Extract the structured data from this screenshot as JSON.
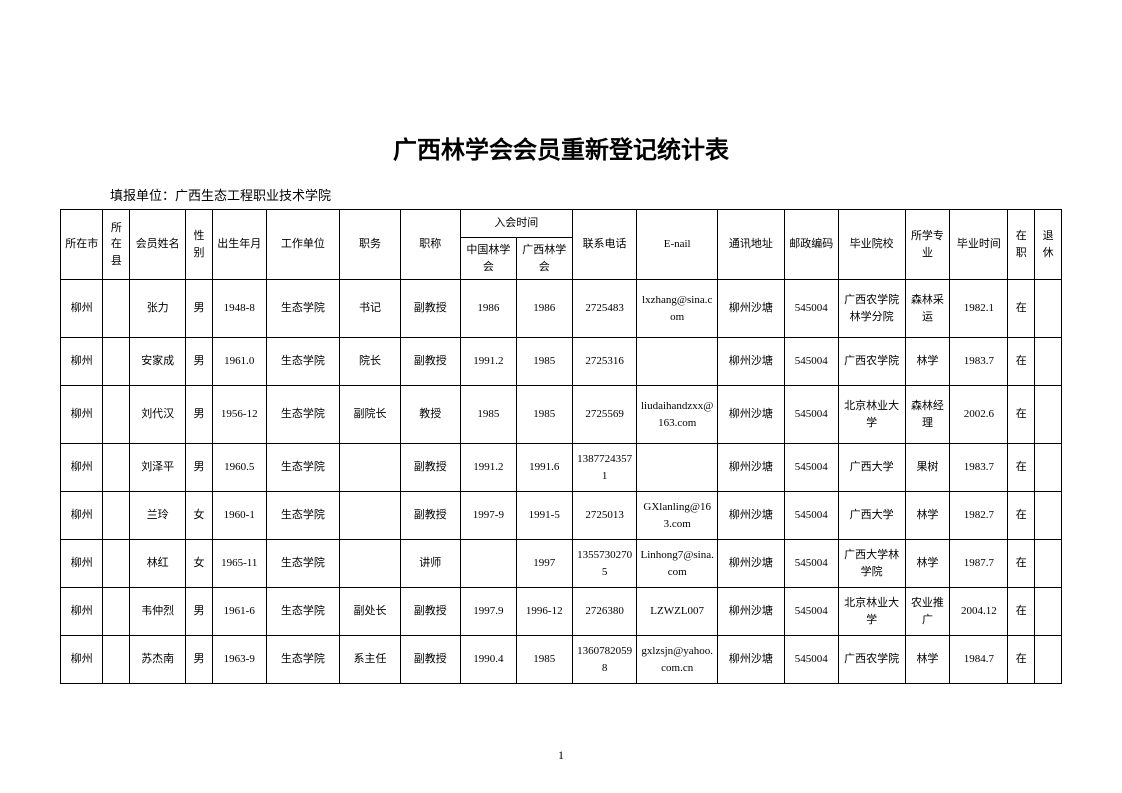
{
  "title": "广西林学会会员重新登记统计表",
  "subtitle": "填报单位：广西生态工程职业技术学院",
  "page_number": "1",
  "headers": {
    "city": "所在市",
    "county": "所在县",
    "name": "会员姓名",
    "gender": "性别",
    "birth": "出生年月",
    "unit": "工作单位",
    "position": "职务",
    "title": "职称",
    "join_time": "入会时间",
    "join_china": "中国林学会",
    "join_gx": "广西林学会",
    "phone": "联系电话",
    "email": "E-nail",
    "addr": "通讯地址",
    "postal": "邮政编码",
    "school": "毕业院校",
    "major": "所学专业",
    "grad_time": "毕业时间",
    "working": "在职",
    "retired": "退休"
  },
  "rows": [
    {
      "city": "柳州",
      "county": "",
      "name": "张力",
      "gender": "男",
      "birth": "1948-8",
      "unit": "生态学院",
      "position": "书记",
      "title": "副教授",
      "join_china": "1986",
      "join_gx": "1986",
      "phone": "2725483",
      "email": "lxzhang@sina.com",
      "addr": "柳州沙塘",
      "postal": "545004",
      "school": "广西农学院林学分院",
      "major": "森林采运",
      "grad_time": "1982.1",
      "working": "在",
      "retired": ""
    },
    {
      "city": "柳州",
      "county": "",
      "name": "安家成",
      "gender": "男",
      "birth": "1961.0",
      "unit": "生态学院",
      "position": "院长",
      "title": "副教授",
      "join_china": "1991.2",
      "join_gx": "1985",
      "phone": "2725316",
      "email": "",
      "addr": "柳州沙塘",
      "postal": "545004",
      "school": "广西农学院",
      "major": "林学",
      "grad_time": "1983.7",
      "working": "在",
      "retired": ""
    },
    {
      "city": "柳州",
      "county": "",
      "name": "刘代汉",
      "gender": "男",
      "birth": "1956-12",
      "unit": "生态学院",
      "position": "副院长",
      "title": "教授",
      "join_china": "1985",
      "join_gx": "1985",
      "phone": "2725569",
      "email": "liudaihandzxx@163.com",
      "addr": "柳州沙塘",
      "postal": "545004",
      "school": "北京林业大学",
      "major": "森林经理",
      "grad_time": "2002.6",
      "working": "在",
      "retired": ""
    },
    {
      "city": "柳州",
      "county": "",
      "name": "刘泽平",
      "gender": "男",
      "birth": "1960.5",
      "unit": "生态学院",
      "position": "",
      "title": "副教授",
      "join_china": "1991.2",
      "join_gx": "1991.6",
      "phone": "13877243571",
      "email": "",
      "addr": "柳州沙塘",
      "postal": "545004",
      "school": "广西大学",
      "major": "果树",
      "grad_time": "1983.7",
      "working": "在",
      "retired": ""
    },
    {
      "city": "柳州",
      "county": "",
      "name": "兰玲",
      "gender": "女",
      "birth": "1960-1",
      "unit": "生态学院",
      "position": "",
      "title": "副教授",
      "join_china": "1997-9",
      "join_gx": "1991-5",
      "phone": "2725013",
      "email": "GXlanling@163.com",
      "addr": "柳州沙塘",
      "postal": "545004",
      "school": "广西大学",
      "major": "林学",
      "grad_time": "1982.7",
      "working": "在",
      "retired": ""
    },
    {
      "city": "柳州",
      "county": "",
      "name": "林红",
      "gender": "女",
      "birth": "1965-11",
      "unit": "生态学院",
      "position": "",
      "title": "讲师",
      "join_china": "",
      "join_gx": "1997",
      "phone": "13557302705",
      "email": "Linhong7@sina.com",
      "addr": "柳州沙塘",
      "postal": "545004",
      "school": "广西大学林学院",
      "major": "林学",
      "grad_time": "1987.7",
      "working": "在",
      "retired": ""
    },
    {
      "city": "柳州",
      "county": "",
      "name": "韦仲烈",
      "gender": "男",
      "birth": "1961-6",
      "unit": "生态学院",
      "position": "副处长",
      "title": "副教授",
      "join_china": "1997.9",
      "join_gx": "1996-12",
      "phone": "2726380",
      "email": "LZWZL007",
      "addr": "柳州沙塘",
      "postal": "545004",
      "school": "北京林业大学",
      "major": "农业推广",
      "grad_time": "2004.12",
      "working": "在",
      "retired": ""
    },
    {
      "city": "柳州",
      "county": "",
      "name": "苏杰南",
      "gender": "男",
      "birth": "1963-9",
      "unit": "生态学院",
      "position": "系主任",
      "title": "副教授",
      "join_china": "1990.4",
      "join_gx": "1985",
      "phone": "13607820598",
      "email": "gxlzsjn@yahoo.com.cn",
      "addr": "柳州沙塘",
      "postal": "545004",
      "school": "广西农学院",
      "major": "林学",
      "grad_time": "1984.7",
      "working": "在",
      "retired": ""
    }
  ]
}
